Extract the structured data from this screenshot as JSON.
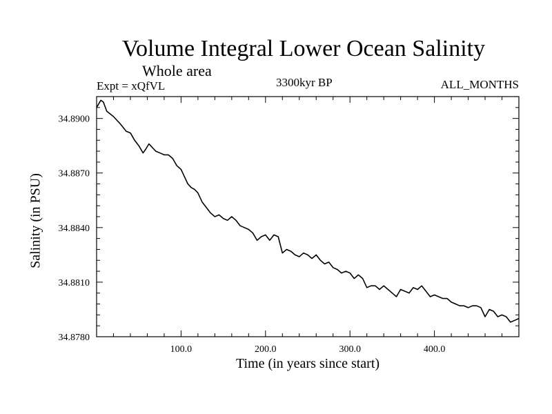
{
  "chart_data": {
    "type": "line",
    "title": "Volume Integral Lower Ocean Salinity",
    "subtitle": "Whole area",
    "left_label": "Expt = xQfVL",
    "center_label": "3300kyr BP",
    "right_label": "ALL_MONTHS",
    "xlabel": "Time (in years since start)",
    "ylabel": "Salinity (in PSU)",
    "xlim": [
      0,
      500
    ],
    "ylim": [
      34.878,
      34.8912
    ],
    "xticks": [
      100,
      200,
      300,
      400
    ],
    "xtick_labels": [
      "100.0",
      "200.0",
      "300.0",
      "400.0"
    ],
    "yticks": [
      34.878,
      34.881,
      34.884,
      34.887,
      34.89
    ],
    "ytick_labels": [
      "34.8780",
      "34.8810",
      "34.8840",
      "34.8870",
      "34.8900"
    ],
    "series": [
      {
        "name": "salinity",
        "x": [
          0,
          5,
          8,
          12,
          20,
          28,
          35,
          40,
          45,
          50,
          55,
          58,
          62,
          66,
          70,
          75,
          80,
          85,
          90,
          95,
          100,
          104,
          108,
          112,
          116,
          120,
          125,
          130,
          135,
          140,
          145,
          150,
          155,
          160,
          165,
          170,
          175,
          180,
          185,
          190,
          195,
          200,
          205,
          210,
          215,
          220,
          225,
          230,
          235,
          240,
          245,
          250,
          255,
          260,
          265,
          270,
          275,
          280,
          285,
          290,
          295,
          300,
          305,
          310,
          315,
          320,
          325,
          330,
          335,
          340,
          345,
          350,
          355,
          360,
          365,
          370,
          375,
          380,
          385,
          390,
          395,
          400,
          405,
          410,
          415,
          420,
          425,
          430,
          435,
          440,
          445,
          450,
          455,
          460,
          465,
          470,
          475,
          480,
          485,
          490,
          495,
          500
        ],
        "y": [
          34.8906,
          34.891,
          34.8909,
          34.8904,
          34.8901,
          34.8897,
          34.8893,
          34.8892,
          34.8888,
          34.8885,
          34.8881,
          34.8883,
          34.8886,
          34.8884,
          34.8882,
          34.8881,
          34.888,
          34.888,
          34.8878,
          34.8874,
          34.8872,
          34.8868,
          34.8864,
          34.8862,
          34.8861,
          34.8859,
          34.8854,
          34.8851,
          34.8848,
          34.8846,
          34.8847,
          34.8845,
          34.8844,
          34.8846,
          34.8844,
          34.8841,
          34.884,
          34.8839,
          34.8837,
          34.8833,
          34.8835,
          34.8836,
          34.8833,
          34.8836,
          34.8835,
          34.8826,
          34.8828,
          34.8827,
          34.8825,
          34.8824,
          34.8826,
          34.8825,
          34.8823,
          34.8825,
          34.8822,
          34.882,
          34.8821,
          34.8818,
          34.8817,
          34.8815,
          34.8816,
          34.8815,
          34.8812,
          34.8814,
          34.8812,
          34.8807,
          34.8808,
          34.8808,
          34.8806,
          34.8808,
          34.8806,
          34.8804,
          34.8802,
          34.8806,
          34.8805,
          34.8804,
          34.8807,
          34.8806,
          34.8808,
          34.8805,
          34.8802,
          34.8803,
          34.8802,
          34.8801,
          34.8801,
          34.8799,
          34.8798,
          34.8797,
          34.8797,
          34.8796,
          34.8797,
          34.8797,
          34.8796,
          34.8791,
          34.8795,
          34.8794,
          34.8791,
          34.8792,
          34.8791,
          34.8788,
          34.8789,
          34.879
        ]
      }
    ]
  }
}
